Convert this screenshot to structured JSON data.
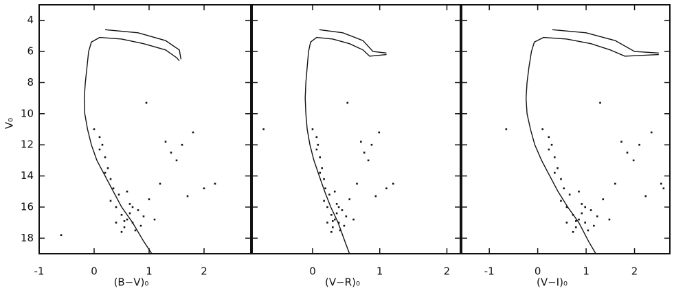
{
  "chart_data": [
    {
      "type": "scatter",
      "xlabel": "(B−V)₀",
      "ylabel": "V₀",
      "xlim": [
        -1,
        2.85
      ],
      "ylim": [
        19,
        3
      ],
      "xticks": [
        -1,
        0,
        1,
        2
      ],
      "yticks": [
        4,
        6,
        8,
        10,
        12,
        14,
        16,
        18
      ],
      "ytick_labels": true,
      "series": [
        {
          "mode": "line",
          "color": "#111",
          "x": [
            1.05,
            0.9,
            0.7,
            0.5,
            0.35,
            0.2,
            0.05,
            -0.05,
            -0.12,
            -0.17,
            -0.18,
            -0.16,
            -0.13,
            -0.1,
            -0.05,
            0.1,
            0.5,
            0.9,
            1.3,
            1.5,
            1.55,
            null,
            0.2,
            0.8,
            1.3,
            1.55,
            1.58
          ],
          "values": [
            19,
            18.2,
            17,
            16,
            15,
            14,
            13,
            12,
            11,
            10,
            9,
            8,
            7,
            6,
            5.4,
            5.1,
            5.2,
            5.5,
            5.9,
            6.4,
            6.6,
            null,
            4.6,
            4.8,
            5.3,
            5.9,
            6.5
          ]
        },
        {
          "mode": "markers",
          "color": "#111",
          "x": [
            0.5,
            0.6,
            0.7,
            0.4,
            0.55,
            0.65,
            0.8,
            0.45,
            0.35,
            0.3,
            0.25,
            0.2,
            0.15,
            0.1,
            0.5,
            0.75,
            0.9,
            1.0,
            1.2,
            1.4,
            1.6,
            1.8,
            0.6,
            0.7,
            0.85,
            0.3,
            0.2,
            0.1,
            0.0,
            1.3,
            1.5,
            1.7,
            2.0,
            2.2,
            -0.6,
            0.95,
            0.4,
            0.65,
            0.55,
            1.1
          ],
          "values": [
            16.5,
            16.8,
            17.0,
            16.0,
            17.3,
            15.8,
            16.2,
            15.2,
            14.8,
            14.2,
            13.5,
            12.8,
            12.0,
            11.5,
            17.6,
            17.5,
            16.6,
            15.5,
            14.5,
            12.5,
            12.0,
            11.2,
            15.0,
            16.0,
            17.2,
            15.6,
            13.8,
            12.3,
            11.0,
            11.8,
            13.0,
            15.3,
            14.8,
            14.5,
            17.8,
            9.3,
            17.0,
            16.4,
            16.9,
            16.8
          ]
        }
      ]
    },
    {
      "type": "scatter",
      "xlabel": "(V−R)₀",
      "xlim": [
        -0.9,
        2.2
      ],
      "ylim": [
        19,
        3
      ],
      "xticks": [
        0,
        1,
        2
      ],
      "yticks": [
        4,
        6,
        8,
        10,
        12,
        14,
        16,
        18
      ],
      "ytick_labels": false,
      "series": [
        {
          "mode": "line",
          "color": "#111",
          "x": [
            0.55,
            0.48,
            0.38,
            0.27,
            0.18,
            0.1,
            0.02,
            -0.04,
            -0.08,
            -0.1,
            -0.11,
            -0.1,
            -0.08,
            -0.06,
            -0.03,
            0.06,
            0.3,
            0.55,
            0.75,
            0.85,
            1.1,
            null,
            0.1,
            0.45,
            0.75,
            0.9,
            1.1
          ],
          "values": [
            19,
            18.2,
            17,
            16,
            15,
            14,
            13,
            12,
            11,
            10,
            9,
            8,
            7,
            6,
            5.4,
            5.1,
            5.2,
            5.5,
            5.9,
            6.3,
            6.2,
            null,
            4.6,
            4.8,
            5.3,
            6.0,
            6.1
          ]
        },
        {
          "mode": "markers",
          "color": "#111",
          "x": [
            0.28,
            0.33,
            0.39,
            0.22,
            0.3,
            0.36,
            0.44,
            0.25,
            0.19,
            0.17,
            0.14,
            0.11,
            0.08,
            0.06,
            0.28,
            0.41,
            0.5,
            0.55,
            0.66,
            0.77,
            0.88,
            0.99,
            0.33,
            0.39,
            0.47,
            0.17,
            0.11,
            0.06,
            0.0,
            0.72,
            0.83,
            0.94,
            1.1,
            1.2,
            -0.73,
            0.52,
            0.22,
            0.36,
            0.3,
            0.61
          ],
          "values": [
            16.5,
            16.8,
            17.0,
            16.0,
            17.3,
            15.8,
            16.2,
            15.2,
            14.8,
            14.2,
            13.5,
            12.8,
            12.0,
            11.5,
            17.6,
            17.5,
            16.6,
            15.5,
            14.5,
            12.5,
            12.0,
            11.2,
            15.0,
            16.0,
            17.2,
            15.6,
            13.8,
            12.3,
            11.0,
            11.8,
            13.0,
            15.3,
            14.8,
            14.5,
            11.0,
            9.3,
            17.0,
            16.4,
            16.9,
            16.8
          ]
        }
      ]
    },
    {
      "type": "scatter",
      "xlabel": "(V−I)₀",
      "xlim": [
        -1.57,
        2.73
      ],
      "ylim": [
        19,
        3
      ],
      "xticks": [
        -1,
        0,
        1,
        2
      ],
      "yticks": [
        4,
        6,
        8,
        10,
        12,
        14,
        16,
        18
      ],
      "ytick_labels": false,
      "series": [
        {
          "mode": "line",
          "color": "#111",
          "x": [
            1.2,
            1.05,
            0.85,
            0.62,
            0.42,
            0.25,
            0.08,
            -0.06,
            -0.15,
            -0.22,
            -0.24,
            -0.22,
            -0.18,
            -0.13,
            -0.07,
            0.12,
            0.6,
            1.1,
            1.5,
            1.8,
            2.5,
            null,
            0.3,
            1.0,
            1.6,
            2.0,
            2.5
          ],
          "values": [
            19,
            18.2,
            17,
            16,
            15,
            14,
            13,
            12,
            11,
            10,
            9,
            8,
            7,
            6,
            5.4,
            5.1,
            5.2,
            5.5,
            5.9,
            6.3,
            6.2,
            null,
            4.6,
            4.8,
            5.3,
            6.0,
            6.1
          ]
        },
        {
          "mode": "markers",
          "color": "#111",
          "x": [
            0.73,
            0.85,
            0.98,
            0.6,
            0.79,
            0.91,
            1.1,
            0.66,
            0.54,
            0.48,
            0.41,
            0.35,
            0.29,
            0.23,
            0.73,
            1.04,
            1.23,
            1.35,
            1.6,
            1.85,
            2.1,
            2.35,
            0.85,
            0.98,
            1.16,
            0.48,
            0.35,
            0.23,
            0.1,
            1.73,
            1.98,
            2.23,
            2.6,
            2.55,
            -0.65,
            1.29,
            0.6,
            0.91,
            0.79,
            1.48
          ],
          "values": [
            16.5,
            16.8,
            17.0,
            16.0,
            17.3,
            15.8,
            16.2,
            15.2,
            14.8,
            14.2,
            13.5,
            12.8,
            12.0,
            11.5,
            17.6,
            17.5,
            16.6,
            15.5,
            14.5,
            12.5,
            12.0,
            11.2,
            15.0,
            16.0,
            17.2,
            15.6,
            13.8,
            12.3,
            11.0,
            11.8,
            13.0,
            15.3,
            14.8,
            14.5,
            11.0,
            9.3,
            17.0,
            16.4,
            16.9,
            16.8
          ]
        }
      ]
    }
  ]
}
